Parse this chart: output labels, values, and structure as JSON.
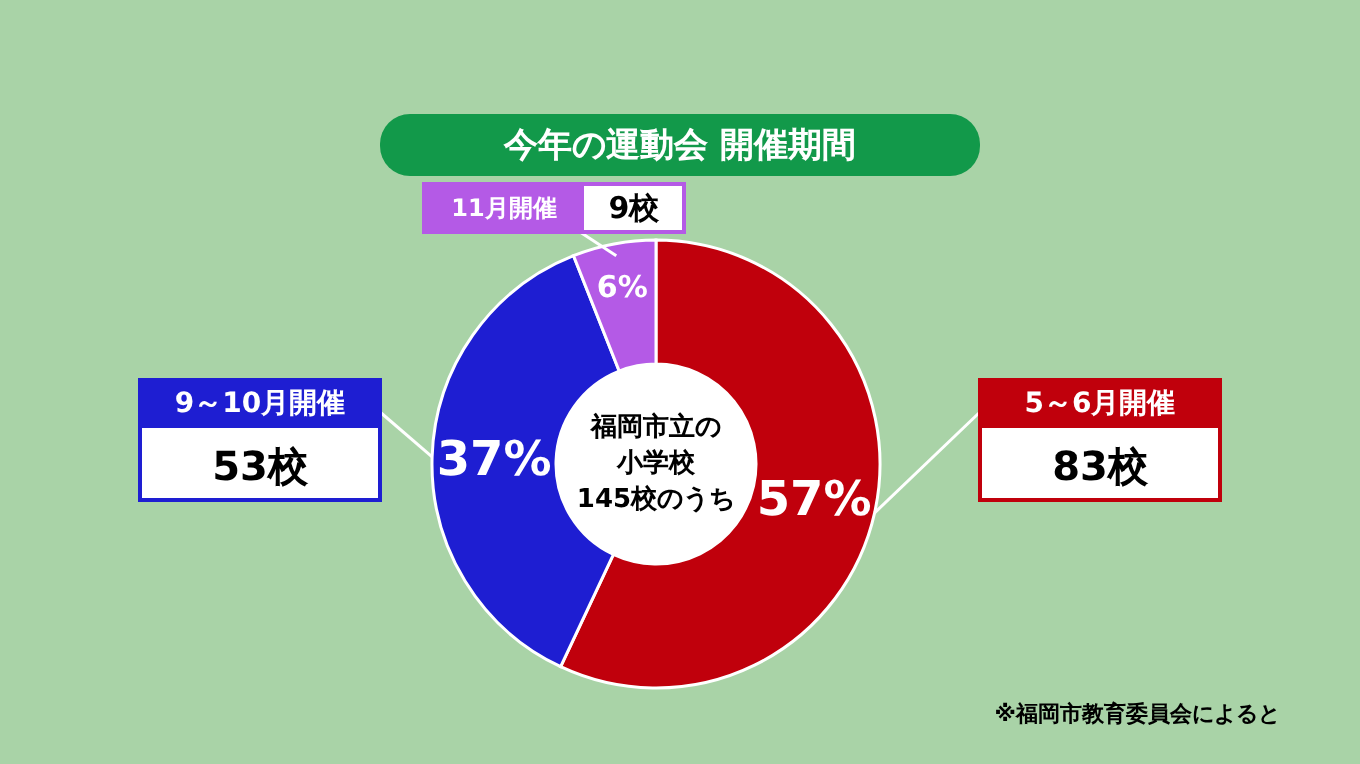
{
  "chart_data": {
    "type": "donut",
    "title": "今年の運動会 開催期間",
    "categories": [
      "5～6月開催",
      "9～10月開催",
      "11月開催"
    ],
    "values": [
      57,
      37,
      6
    ],
    "colors": [
      "#c0000c",
      "#1e1ed2",
      "#b45ae6"
    ],
    "value_labels": [
      "57%",
      "37%",
      "6%"
    ],
    "annotations": [
      {
        "text": "83校",
        "x": "5～6月開催"
      },
      {
        "text": "53校",
        "x": "9～10月開催"
      },
      {
        "text": "9校",
        "x": "11月開催"
      },
      "福岡市立の",
      "小学校",
      "145校のうち",
      "※福岡市教育委員会によると"
    ]
  }
}
